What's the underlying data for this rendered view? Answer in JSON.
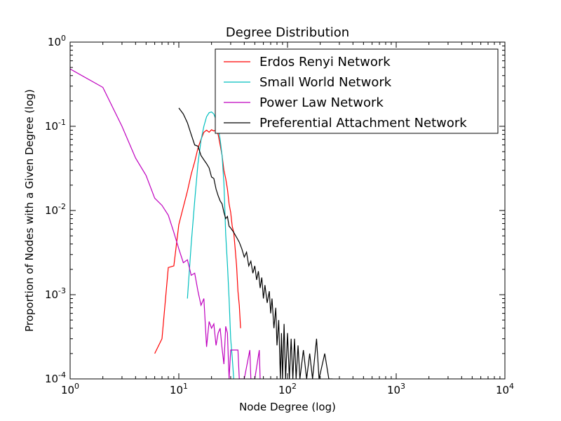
{
  "chart_data": {
    "type": "line",
    "title": "Degree Distribution",
    "xlabel": "Node Degree (log)",
    "ylabel": "Proportion of Nodes with a Given Degree (log)",
    "xscale": "log",
    "yscale": "log",
    "xlim": [
      1,
      10000
    ],
    "ylim": [
      0.0001,
      1
    ],
    "x_ticks": [
      {
        "value": 1,
        "base": "10",
        "exp": "0"
      },
      {
        "value": 10,
        "base": "10",
        "exp": "1"
      },
      {
        "value": 100,
        "base": "10",
        "exp": "2"
      },
      {
        "value": 1000,
        "base": "10",
        "exp": "3"
      },
      {
        "value": 10000,
        "base": "10",
        "exp": "4"
      }
    ],
    "y_ticks": [
      {
        "value": 0.0001,
        "base": "10",
        "exp": "-4"
      },
      {
        "value": 0.001,
        "base": "10",
        "exp": "-3"
      },
      {
        "value": 0.01,
        "base": "10",
        "exp": "-2"
      },
      {
        "value": 0.1,
        "base": "10",
        "exp": "-1"
      },
      {
        "value": 1,
        "base": "10",
        "exp": "0"
      }
    ],
    "grid": false,
    "legend_position": "top-right",
    "series": [
      {
        "name": "Erdos Renyi Network",
        "color": "#ff0000",
        "points": [
          [
            6,
            0.0002
          ],
          [
            7,
            0.0003
          ],
          [
            8,
            0.0021
          ],
          [
            9,
            0.0022
          ],
          [
            10,
            0.0068
          ],
          [
            11,
            0.011
          ],
          [
            12,
            0.017
          ],
          [
            13,
            0.027
          ],
          [
            14,
            0.038
          ],
          [
            15,
            0.055
          ],
          [
            16,
            0.07
          ],
          [
            17,
            0.085
          ],
          [
            18,
            0.09
          ],
          [
            19,
            0.085
          ],
          [
            20,
            0.091
          ],
          [
            21,
            0.088
          ],
          [
            22,
            0.09
          ],
          [
            23,
            0.08
          ],
          [
            24,
            0.06
          ],
          [
            25,
            0.045
          ],
          [
            26,
            0.03
          ],
          [
            27,
            0.024
          ],
          [
            28,
            0.018
          ],
          [
            29,
            0.012
          ],
          [
            30,
            0.0095
          ],
          [
            31,
            0.0065
          ],
          [
            32,
            0.0055
          ],
          [
            33,
            0.0035
          ],
          [
            34,
            0.0022
          ],
          [
            35,
            0.0011
          ],
          [
            36,
            0.00075
          ],
          [
            37,
            0.0004
          ]
        ]
      },
      {
        "name": "Small World Network",
        "color": "#00bfbf",
        "points": [
          [
            12,
            0.0009
          ],
          [
            13,
            0.004
          ],
          [
            14,
            0.013
          ],
          [
            15,
            0.036
          ],
          [
            16,
            0.068
          ],
          [
            17,
            0.1
          ],
          [
            18,
            0.13
          ],
          [
            19,
            0.145
          ],
          [
            20,
            0.148
          ],
          [
            21,
            0.14
          ],
          [
            22,
            0.12
          ],
          [
            23,
            0.095
          ],
          [
            24,
            0.07
          ],
          [
            25,
            0.045
          ],
          [
            26,
            0.021
          ],
          [
            27,
            0.0052
          ],
          [
            28,
            0.0023
          ],
          [
            29,
            0.0009
          ],
          [
            30,
            0.0003
          ],
          [
            31,
            0.00018
          ],
          [
            32,
            0.0001
          ]
        ]
      },
      {
        "name": "Power Law Network",
        "color": "#bf00bf",
        "points": [
          [
            1,
            0.48
          ],
          [
            2,
            0.29
          ],
          [
            3,
            0.1
          ],
          [
            4,
            0.042
          ],
          [
            5,
            0.026
          ],
          [
            6,
            0.014
          ],
          [
            7,
            0.0115
          ],
          [
            8,
            0.0088
          ],
          [
            9,
            0.0055
          ],
          [
            10,
            0.0035
          ],
          [
            11,
            0.0024
          ],
          [
            12,
            0.0026
          ],
          [
            13,
            0.0017
          ],
          [
            14,
            0.0018
          ],
          [
            15,
            0.0011
          ],
          [
            16,
            0.00075
          ],
          [
            17,
            0.0009
          ],
          [
            18,
            0.00024
          ],
          [
            19,
            0.00048
          ],
          [
            20,
            0.0004
          ],
          [
            21,
            0.00045
          ],
          [
            22,
            0.00025
          ],
          [
            23,
            0.00035
          ],
          [
            24,
            0.0004
          ],
          [
            25,
            0.00023
          ],
          [
            26,
            0.00015
          ],
          [
            27,
            0.00042
          ],
          [
            28,
            0.00035
          ],
          [
            29,
            0.0001
          ],
          [
            30,
            0.00022
          ],
          [
            35,
            0.00022
          ],
          [
            36,
            0.0001
          ],
          [
            40,
            0.0001
          ],
          [
            45,
            0.00022
          ],
          [
            46,
            0.0001
          ],
          [
            50,
            0.0001
          ],
          [
            55,
            0.00022
          ],
          [
            56,
            0.0001
          ]
        ]
      },
      {
        "name": "Preferential Attachment Network",
        "color": "#000000",
        "points": [
          [
            10,
            0.165
          ],
          [
            11,
            0.14
          ],
          [
            12,
            0.11
          ],
          [
            13,
            0.08
          ],
          [
            14,
            0.06
          ],
          [
            15,
            0.058
          ],
          [
            16,
            0.045
          ],
          [
            17,
            0.04
          ],
          [
            18,
            0.036
          ],
          [
            19,
            0.032
          ],
          [
            20,
            0.025
          ],
          [
            21,
            0.024
          ],
          [
            22,
            0.018
          ],
          [
            23,
            0.015
          ],
          [
            24,
            0.013
          ],
          [
            25,
            0.012
          ],
          [
            26,
            0.0095
          ],
          [
            27,
            0.008
          ],
          [
            28,
            0.0085
          ],
          [
            29,
            0.0065
          ],
          [
            30,
            0.0062
          ],
          [
            32,
            0.0055
          ],
          [
            34,
            0.0048
          ],
          [
            36,
            0.0042
          ],
          [
            38,
            0.0035
          ],
          [
            40,
            0.0028
          ],
          [
            42,
            0.0032
          ],
          [
            44,
            0.0022
          ],
          [
            46,
            0.0025
          ],
          [
            48,
            0.0018
          ],
          [
            50,
            0.0022
          ],
          [
            52,
            0.0015
          ],
          [
            54,
            0.0019
          ],
          [
            56,
            0.0012
          ],
          [
            58,
            0.0016
          ],
          [
            60,
            0.0009
          ],
          [
            62,
            0.0013
          ],
          [
            65,
            0.0008
          ],
          [
            68,
            0.0011
          ],
          [
            70,
            0.0006
          ],
          [
            72,
            0.0009
          ],
          [
            75,
            0.0004
          ],
          [
            78,
            0.0007
          ],
          [
            80,
            0.00025
          ],
          [
            83,
            0.0005
          ],
          [
            86,
            0.0001
          ],
          [
            88,
            0.00035
          ],
          [
            90,
            0.0001
          ],
          [
            93,
            0.00045
          ],
          [
            96,
            0.0001
          ],
          [
            100,
            0.00035
          ],
          [
            104,
            0.0001
          ],
          [
            108,
            0.0003
          ],
          [
            112,
            0.0001
          ],
          [
            116,
            0.0003
          ],
          [
            120,
            0.0001
          ],
          [
            125,
            0.00025
          ],
          [
            130,
            0.0001
          ],
          [
            140,
            0.00022
          ],
          [
            150,
            0.0001
          ],
          [
            160,
            0.0002
          ],
          [
            170,
            0.0001
          ],
          [
            185,
            0.0003
          ],
          [
            195,
            0.0001
          ],
          [
            220,
            0.0002
          ],
          [
            240,
            0.0001
          ],
          [
            260,
            0.0001
          ]
        ]
      }
    ]
  }
}
